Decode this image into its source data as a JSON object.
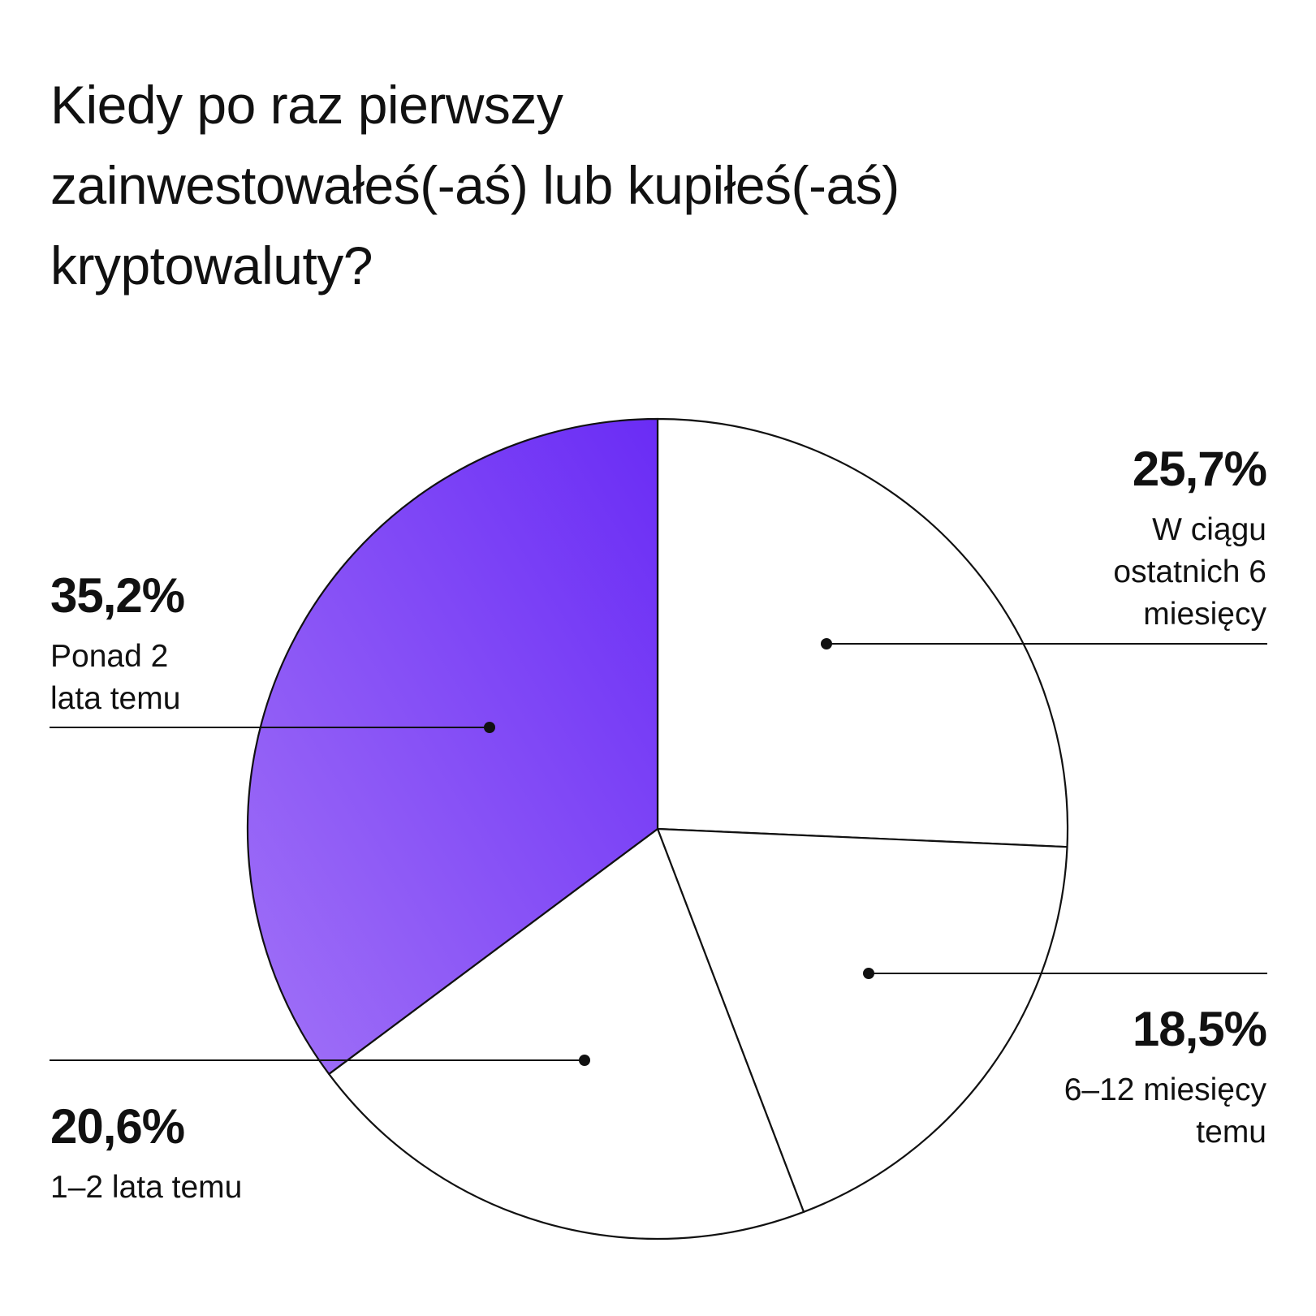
{
  "title_lines": [
    "Kiedy po raz pierwszy",
    "zainwestowałeś(-aś) lub kupiłeś(-aś)",
    "kryptowaluty?"
  ],
  "colors": {
    "highlight_dark": "#6a2cf5",
    "highlight_light": "#a172f7",
    "outline": "#111111",
    "background": "#ffffff"
  },
  "chart_data": {
    "type": "pie",
    "title": "Kiedy po raz pierwszy zainwestowałeś(-aś) lub kupiłeś(-aś) kryptowaluty?",
    "start": "12 o'clock",
    "direction": "clockwise",
    "slices": [
      {
        "value": 25.7,
        "value_label": "25,7%",
        "label_lines": [
          "W ciągu",
          "ostatnich 6",
          "miesięcy"
        ],
        "highlight": false
      },
      {
        "value": 18.5,
        "value_label": "18,5%",
        "label_lines": [
          "6–12 miesięcy",
          "temu"
        ],
        "highlight": false
      },
      {
        "value": 20.6,
        "value_label": "20,6%",
        "label_lines": [
          "1–2 lata temu"
        ],
        "highlight": false
      },
      {
        "value": 35.2,
        "value_label": "35,2%",
        "label_lines": [
          "Ponad 2",
          "lata temu"
        ],
        "highlight": true
      }
    ]
  }
}
